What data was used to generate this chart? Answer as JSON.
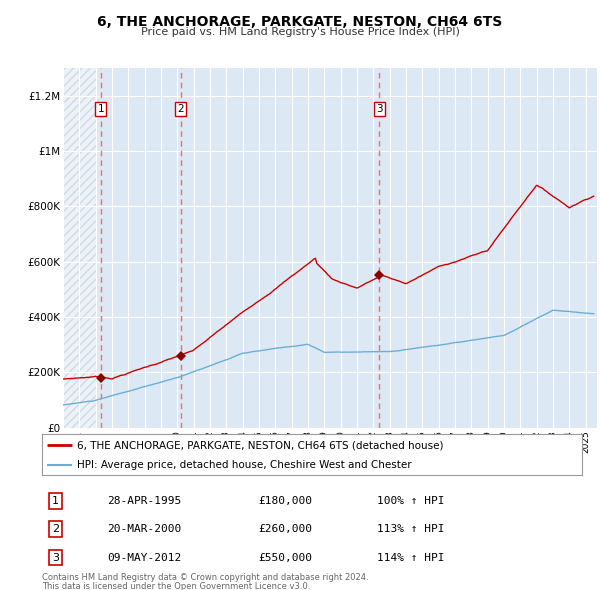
{
  "title": "6, THE ANCHORAGE, PARKGATE, NESTON, CH64 6TS",
  "subtitle": "Price paid vs. HM Land Registry's House Price Index (HPI)",
  "legend_line1": "6, THE ANCHORAGE, PARKGATE, NESTON, CH64 6TS (detached house)",
  "legend_line2": "HPI: Average price, detached house, Cheshire West and Chester",
  "footer1": "Contains HM Land Registry data © Crown copyright and database right 2024.",
  "footer2": "This data is licensed under the Open Government Licence v3.0.",
  "transactions": [
    {
      "num": 1,
      "date": "28-APR-1995",
      "price": 180000,
      "hpi": "100% ↑ HPI",
      "year": 1995.32
    },
    {
      "num": 2,
      "date": "20-MAR-2000",
      "price": 260000,
      "hpi": "113% ↑ HPI",
      "year": 2000.21
    },
    {
      "num": 3,
      "date": "09-MAY-2012",
      "price": 550000,
      "hpi": "114% ↑ HPI",
      "year": 2012.36
    }
  ],
  "hpi_color": "#6daed4",
  "price_color": "#cc0000",
  "marker_color": "#880000",
  "dashed_color": "#ff6666",
  "bg_color": "#dce9f5",
  "grid_color": "#ffffff",
  "ylim": [
    0,
    1300000
  ],
  "xlim_start": 1993.0,
  "xlim_end": 2025.7
}
